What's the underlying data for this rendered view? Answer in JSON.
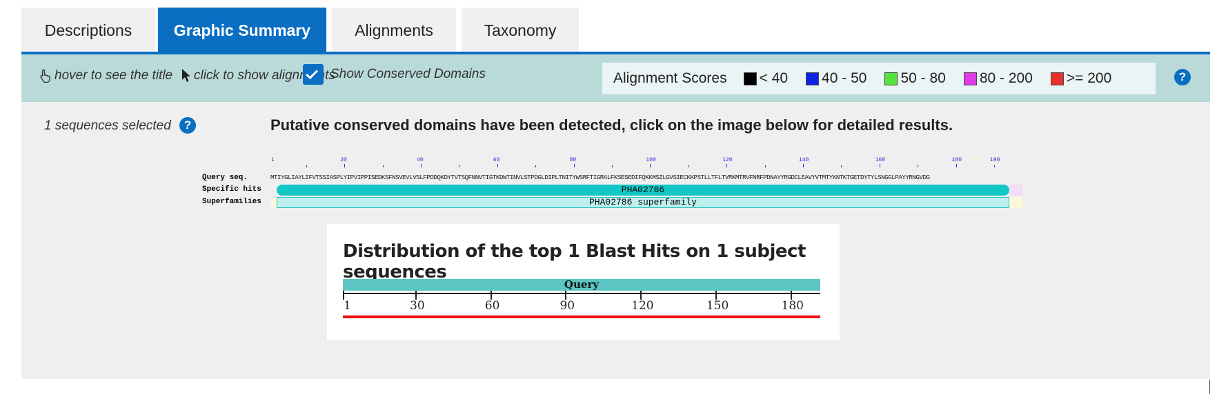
{
  "tabs": [
    {
      "label": "Descriptions",
      "active": false
    },
    {
      "label": "Graphic Summary",
      "active": true
    },
    {
      "label": "Alignments",
      "active": false
    },
    {
      "label": "Taxonomy",
      "active": false
    }
  ],
  "toolbar": {
    "hover_hint": "hover to see the title",
    "click_hint": "click to show alignments",
    "show_conserved_domains": "Show Conserved Domains",
    "show_conserved_domains_checked": true
  },
  "alignment_scores": {
    "title": "Alignment Scores",
    "ranges": [
      {
        "label": "< 40",
        "color": "#000000"
      },
      {
        "label": "40 - 50",
        "color": "#0d24e6"
      },
      {
        "label": "50 - 80",
        "color": "#55e23c"
      },
      {
        "label": "80 - 200",
        "color": "#e03ce6"
      },
      {
        "label": ">= 200",
        "color": "#e8302e"
      }
    ]
  },
  "help_icon": "?",
  "selection": {
    "text": "1 sequences selected"
  },
  "conserved_domains": {
    "message": "Putative conserved domains have been detected, click on the image below for detailed results.",
    "row_labels": {
      "query": "Query seq.",
      "specific": "Specific hits",
      "superfamilies": "Superfamilies"
    },
    "ruler": [
      "1",
      "20",
      "40",
      "60",
      "80",
      "100",
      "120",
      "140",
      "160",
      "180",
      "190"
    ],
    "query_sequence": "MTIYGLIAYLIFVTSSIASPLYIPVIPPISEDKSFNSVEVLVSLFPDDQKDYTVTSQFNNVTIGTKDWTINVLSTPDGLDIPLTNITYWSRFTIGRALFKSESEDIFQKKMSILGVSIECKKPSTLLTFLTVRKMTRVFNRFPDNAYYRGDCLEAVYVTMTYKNTKTGETDYTYLSNGGLPAYYRNGVDG",
    "specific_hit": "PHA02786",
    "superfamily": "PHA02786 superfamily"
  },
  "distribution": {
    "title": "Distribution of the top 1 Blast Hits on 1 subject sequences",
    "query_label": "Query",
    "axis_labels": [
      "1",
      "30",
      "60",
      "90",
      "120",
      "150",
      "180"
    ],
    "colors": {
      "query_bar": "#5cc6c4",
      "hit_bar": "#ee1111"
    }
  }
}
